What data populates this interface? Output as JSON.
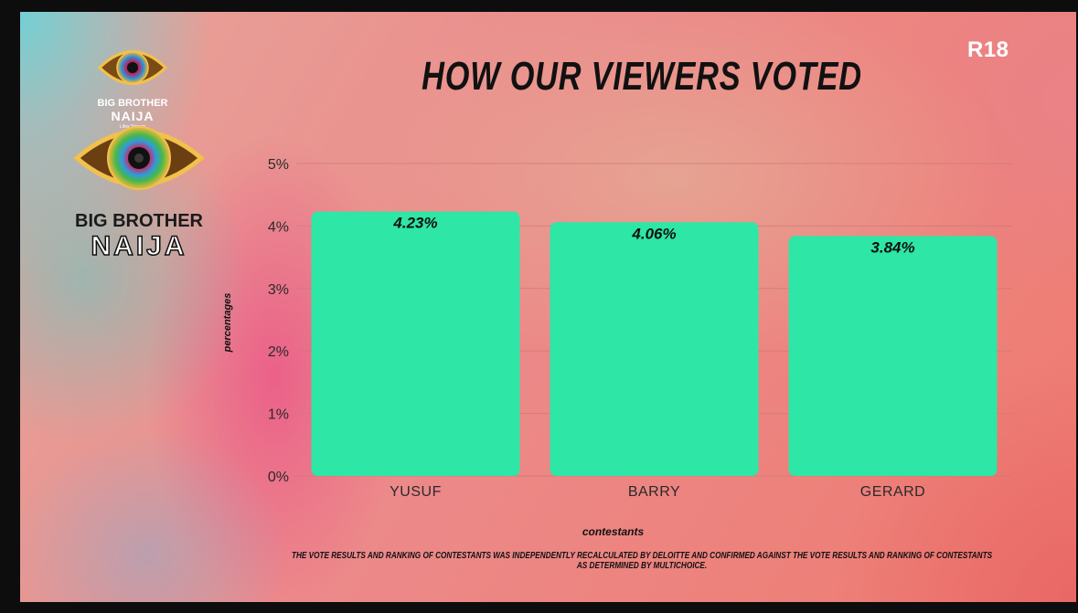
{
  "brand": {
    "logo_small_line1": "BIG BROTHER",
    "logo_small_line2": "NAIJA",
    "logo_small_tag": "Lifes Stream",
    "logo_large_line1": "BIG BROTHER",
    "logo_large_line2": "NAIJA"
  },
  "rating": "R18",
  "footnote": "THE VOTE RESULTS AND RANKING OF CONTESTANTS WAS INDEPENDENTLY RECALCULATED BY DELOITTE AND CONFIRMED AGAINST THE VOTE RESULTS AND RANKING OF CONTESTANTS AS DETERMINED BY MULTICHOICE.",
  "chart_data": {
    "type": "bar",
    "title": "HOW OUR VIEWERS VOTED",
    "categories": [
      "YUSUF",
      "BARRY",
      "GERARD"
    ],
    "values": [
      4.23,
      4.06,
      3.84
    ],
    "data_labels": [
      "4.23%",
      "4.06%",
      "3.84%"
    ],
    "xlabel": "contestants",
    "ylabel": "percentages",
    "ylim": [
      0,
      5
    ],
    "yticks": [
      "0%",
      "1%",
      "2%",
      "3%",
      "4%",
      "5%"
    ],
    "grid": true,
    "bar_color": "#2ee6a6",
    "grid_color": "#c87a78"
  }
}
